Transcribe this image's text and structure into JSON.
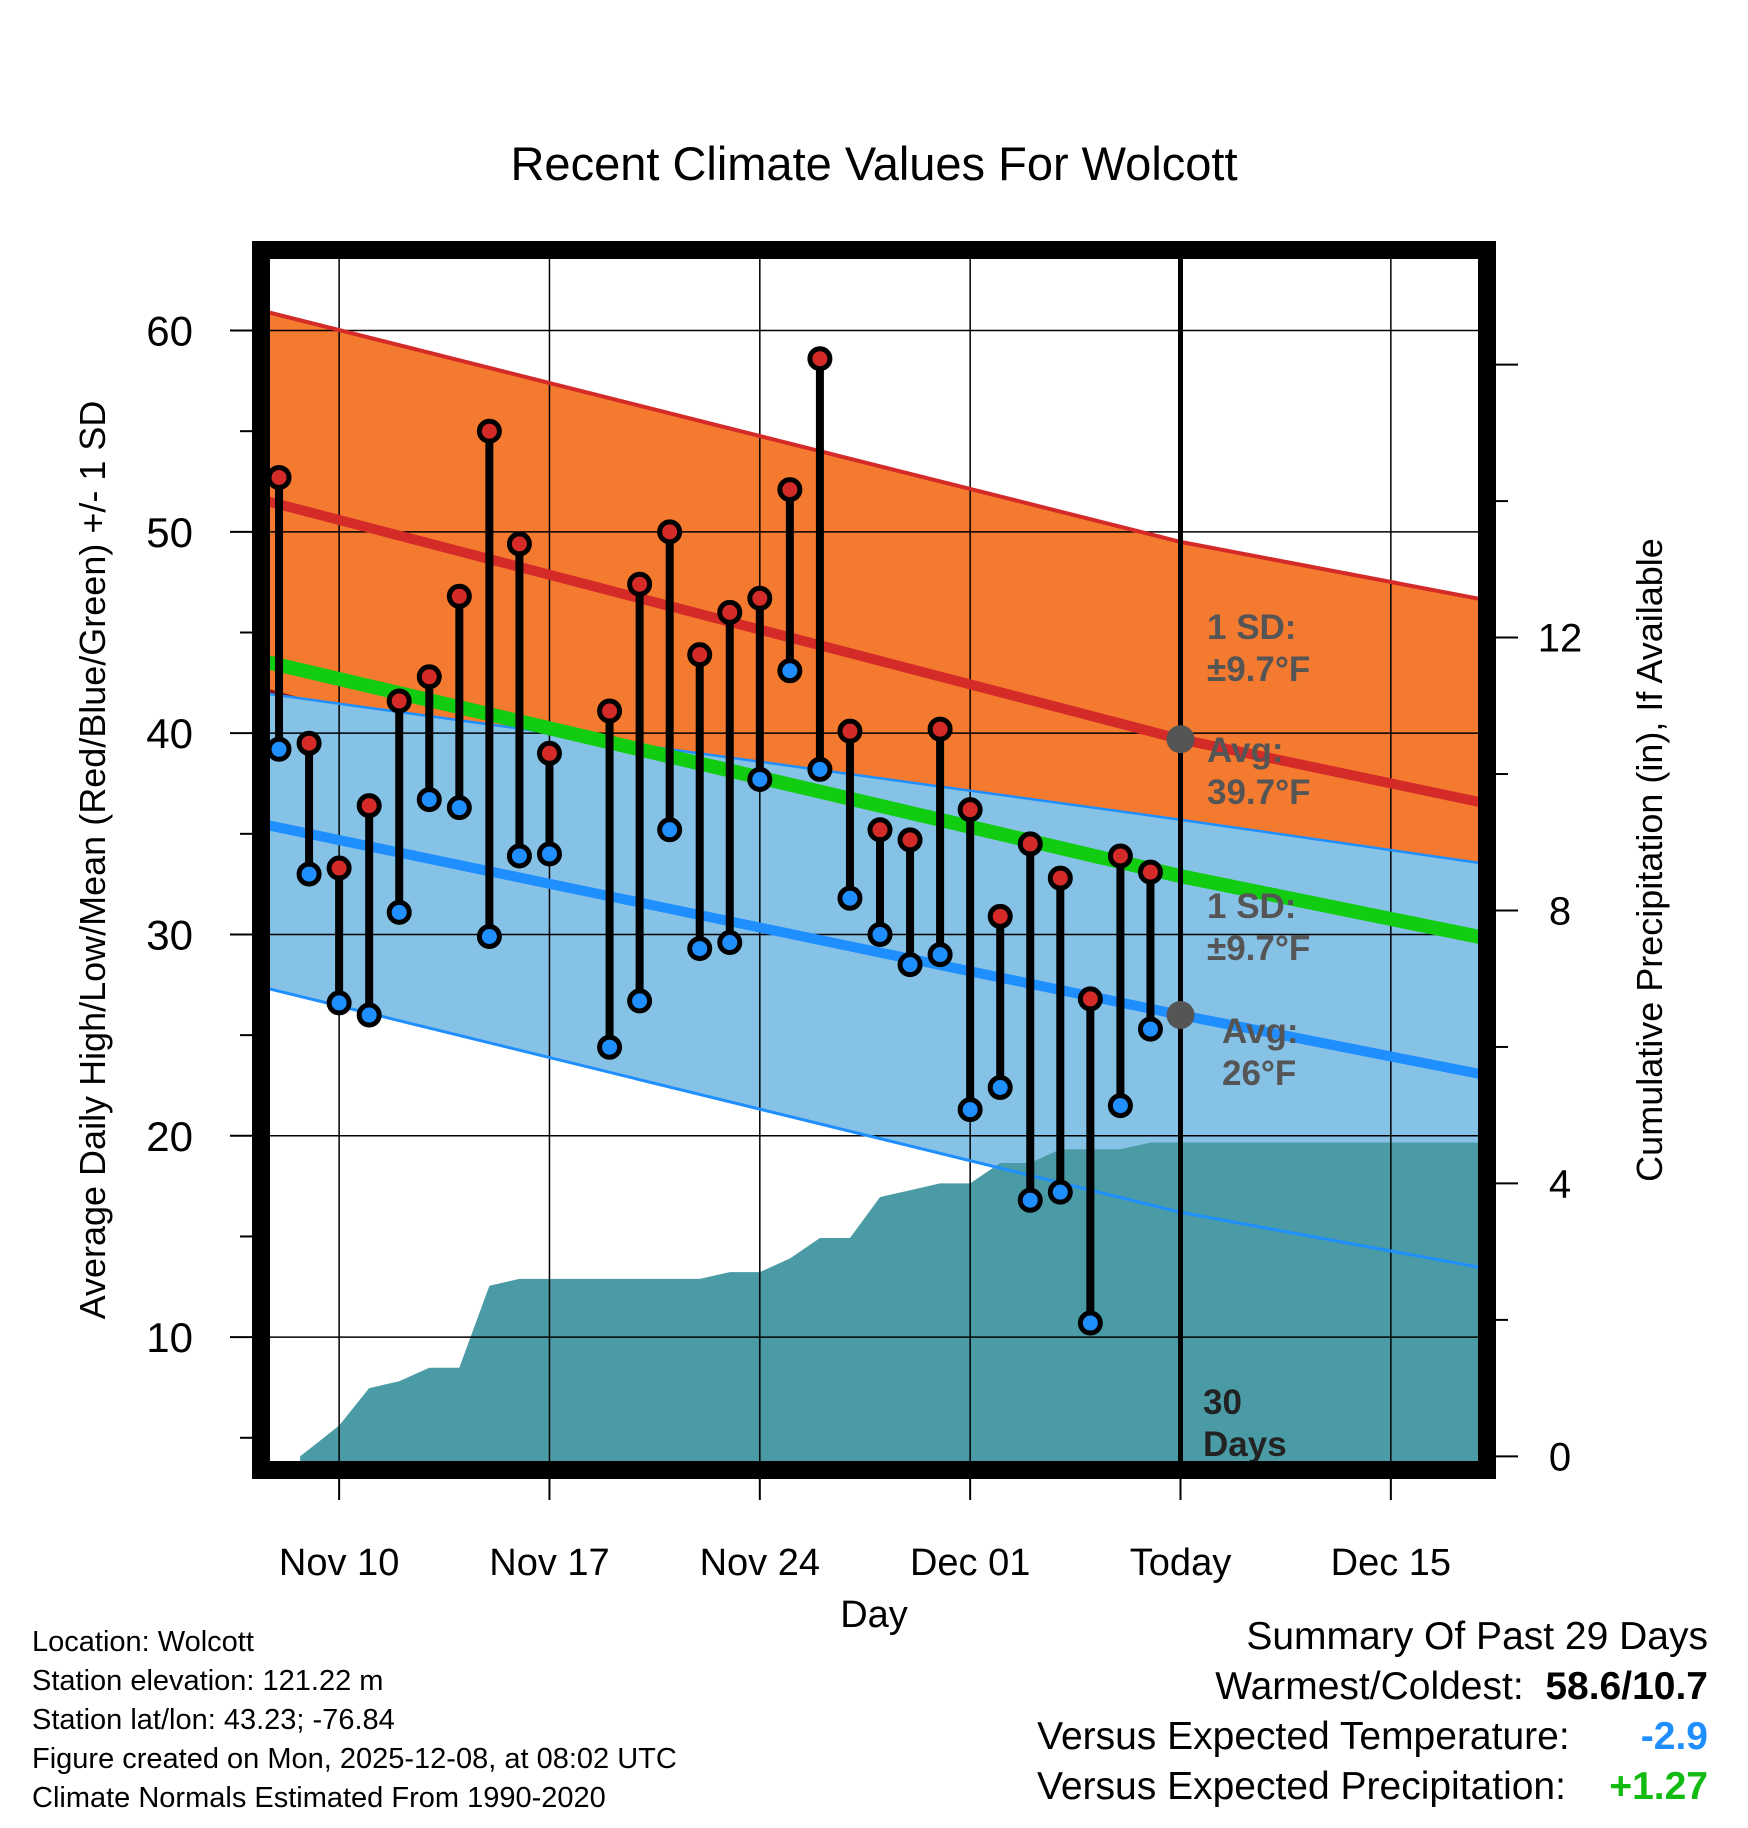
{
  "chart_data": {
    "type": "line",
    "title": "Recent Climate Values For Wolcott",
    "xlabel": "Day",
    "ylabel": "Average Daily High/Low/Mean (Red/Blue/Green) +/- 1 SD",
    "y2label": "Cumulative Precipitation (in), If Available",
    "ylim": [
      3.4,
      64
    ],
    "y2lim": [
      -0.2,
      17.68
    ],
    "xlim": [
      -2.6,
      38.2
    ],
    "ytick_labels": [
      "10",
      "20",
      "30",
      "40",
      "50",
      "60"
    ],
    "y2tick_labels": [
      "0",
      "4",
      "8",
      "12"
    ],
    "x_ticks": [
      {
        "day": 0,
        "label": "Nov 10"
      },
      {
        "day": 7,
        "label": "Nov 17"
      },
      {
        "day": 14,
        "label": "Nov 24"
      },
      {
        "day": 21,
        "label": "Dec 01"
      },
      {
        "day": 28,
        "label": "Today"
      },
      {
        "day": 35,
        "label": "Dec 15"
      }
    ],
    "days_from_nov10": [
      -2,
      -1,
      0,
      1,
      2,
      3,
      4,
      5,
      6,
      7,
      9,
      10,
      11,
      12,
      13,
      14,
      15,
      16,
      17,
      18,
      19,
      20,
      21,
      22,
      23,
      24,
      25,
      26,
      27
    ],
    "daily_high": [
      52.7,
      39.5,
      33.3,
      36.4,
      41.6,
      42.8,
      46.8,
      55.0,
      49.4,
      39.0,
      41.1,
      47.4,
      50.0,
      43.9,
      46.0,
      46.7,
      52.1,
      58.6,
      40.1,
      35.2,
      34.7,
      40.2,
      36.2,
      30.9,
      34.5,
      32.8,
      26.8,
      33.9,
      33.1
    ],
    "daily_low": [
      39.2,
      33.0,
      26.6,
      26.0,
      31.1,
      36.7,
      36.3,
      29.9,
      33.9,
      34.0,
      24.4,
      26.7,
      35.2,
      29.3,
      29.6,
      37.7,
      43.1,
      38.2,
      31.8,
      30.0,
      28.5,
      29.0,
      21.3,
      22.4,
      16.8,
      17.2,
      10.7,
      21.5,
      25.3
    ],
    "normals": {
      "days": [
        -2.6,
        28,
        38.2
      ],
      "high_avg": [
        51.6,
        39.7,
        36.5
      ],
      "high_upper": [
        61.0,
        49.5,
        46.6
      ],
      "low_avg": [
        35.5,
        26.0,
        23.0
      ],
      "low_lower": [
        27.4,
        16.2,
        13.4
      ],
      "mean_avg": [
        43.6,
        32.9,
        29.8
      ],
      "mean_lower": [
        42.3,
        29.8,
        26.7
      ],
      "mean_upper": [
        42.0,
        35.7,
        33.5
      ]
    },
    "precip": {
      "days": [
        -1.3,
        0,
        1,
        2,
        3,
        4,
        5,
        6,
        7,
        12,
        13,
        14,
        15,
        16,
        17,
        18,
        19,
        20,
        21,
        22,
        23,
        24,
        25,
        26,
        27,
        38.2
      ],
      "values": [
        0,
        0.45,
        1.0,
        1.1,
        1.3,
        1.3,
        2.5,
        2.6,
        2.6,
        2.6,
        2.7,
        2.7,
        2.9,
        3.2,
        3.2,
        3.8,
        3.9,
        4.0,
        4.0,
        4.3,
        4.3,
        4.5,
        4.5,
        4.5,
        4.6,
        4.6
      ]
    },
    "annotations": {
      "high_sd": "1 SD:\n±9.7°F",
      "high_avg": "Avg:\n39.7°F",
      "low_sd": "1 SD:\n±9.7°F",
      "low_avg": "Avg:\n26°F",
      "window": "30\nDays"
    },
    "colors": {
      "high_band": "#f47a2f",
      "high_line": "#d42a28",
      "mean_band": "#8b1419",
      "mean_line": "#11cc11",
      "low_band": "#86c1e6",
      "low_line": "#1f8eff",
      "precip": "#4a9ba5",
      "high_marker": "#d42a28",
      "low_marker": "#1f8eff"
    }
  },
  "footer": {
    "location": "Location: Wolcott",
    "elevation": "Station elevation: 121.22 m",
    "latlon": "Station lat/lon: 43.23; -76.84",
    "created": "Figure created on Mon, 2025-12-08, at 08:02 UTC",
    "normals": "Climate Normals Estimated From 1990-2020"
  },
  "summary": {
    "title": "Summary Of Past 29 Days",
    "warm_cold_label": "Warmest/Coldest:",
    "warm_cold_value": "58.6/10.7",
    "temp_label": "Versus Expected Temperature:",
    "temp_value": "-2.9",
    "temp_color": "#1f8eff",
    "precip_label": "Versus Expected Precipitation:",
    "precip_value": "+1.27",
    "precip_color": "#11bb11"
  }
}
